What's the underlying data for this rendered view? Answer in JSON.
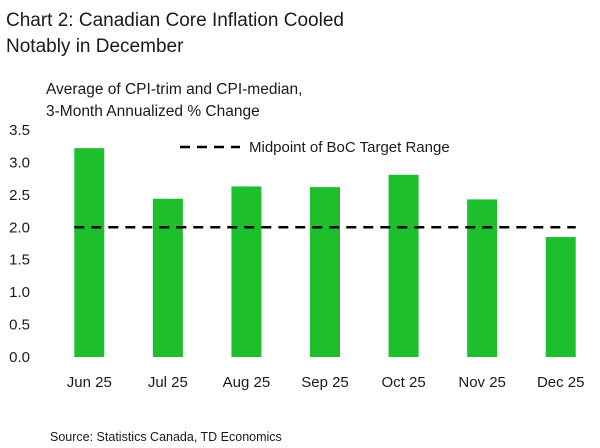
{
  "chart_data": {
    "type": "bar",
    "title": "Chart 2: Canadian Core Inflation Cooled Notably in December",
    "title_lines": [
      "Chart 2: Canadian Core Inflation Cooled",
      "Notably in December"
    ],
    "ylabel_lines": [
      "Average of CPI-trim and CPI-median,",
      "3-Month Annualized % Change"
    ],
    "xlabel": "",
    "categories": [
      "Jun 25",
      "Jul 25",
      "Aug 25",
      "Sep 25",
      "Oct 25",
      "Nov 25",
      "Dec 25"
    ],
    "series": [
      {
        "values": [
          3.22,
          2.44,
          2.63,
          2.62,
          2.81,
          2.43,
          1.85
        ],
        "color": "#1dbf2d"
      }
    ],
    "reference_line": {
      "name": "Midpoint of BoC Target Range",
      "value": 2.0,
      "style": "dashed",
      "color": "#000000"
    },
    "ylim": [
      0.0,
      3.5
    ],
    "yticks": [
      "0.0",
      "0.5",
      "1.0",
      "1.5",
      "2.0",
      "2.5",
      "3.0",
      "3.5"
    ],
    "grid": false,
    "legend_position": "top-center",
    "source": "Source: Statistics Canada, TD Economics"
  }
}
